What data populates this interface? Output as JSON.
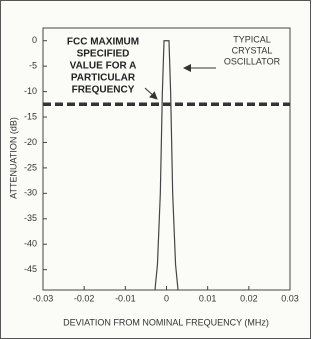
{
  "chart_data": {
    "type": "line",
    "xlabel": "DEVIATION FROM NOMINAL FREQUENCY (MHz)",
    "ylabel": "ATTENUATION (dB)",
    "xlim": [
      -0.03,
      0.03
    ],
    "xticks": [
      -0.03,
      -0.02,
      -0.01,
      0,
      0.01,
      0.02,
      0.03
    ],
    "ylim": [
      -49,
      2.5
    ],
    "yticks": [
      0,
      -5,
      -10,
      -15,
      -20,
      -25,
      -30,
      -35,
      -40,
      -45
    ],
    "series": [
      {
        "color": "#444444",
        "x": [
          -0.0028,
          -0.0022,
          -0.0015,
          -0.001,
          -0.0006,
          0,
          0.0006,
          0.001,
          0.0015,
          0.0022,
          0.0028
        ],
        "values": [
          -49,
          -44,
          -30,
          -10,
          0,
          0,
          0,
          -10,
          -30,
          -44,
          -49
        ]
      }
    ],
    "limit_line": -12.5,
    "limit_color": "#333333",
    "annotations": [
      {
        "lines": [
          "FCC MAXIMUM",
          "SPECIFIED",
          "VALUE FOR A",
          "PARTICULAR",
          "FREQUENCY"
        ]
      },
      {
        "lines": [
          "TYPICAL",
          "CRYSTAL",
          "OSCILLATOR"
        ]
      }
    ]
  }
}
